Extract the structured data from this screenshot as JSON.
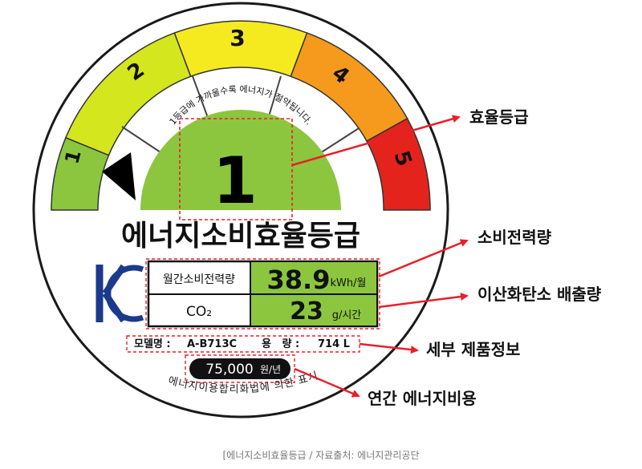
{
  "label": {
    "grades": [
      "1",
      "2",
      "3",
      "4",
      "5"
    ],
    "current_grade": "1",
    "arc_caption": "1등급에 가까울수록 에너지가 절약됩니다.",
    "title": "에너지소비효율등급",
    "kc_mark": "KC",
    "row1_label": "월간소비전력량",
    "row1_value": "38.9",
    "row1_unit": "kWh/월",
    "row2_label": "CO₂",
    "row2_value": "23",
    "row2_unit": "g/시간",
    "model_label": "모델명 :",
    "model_value": "A-B713C",
    "capacity_label": "용   량 :",
    "capacity_value": "714 L",
    "annual_cost": "75,000",
    "annual_cost_unit": "원/년",
    "legal_text": "에너지이용합리화법에 의한 표시"
  },
  "callouts": {
    "grade": "효율등급",
    "power": "소비전력량",
    "co2": "이산화탄소 배출량",
    "details": "세부 제품정보",
    "annual": "연간 에너지비용"
  },
  "caption": "[에너지소비효율등급 / 자료출처: 에너지관리공단",
  "colors": {
    "grade1": "#8cc63f",
    "grade2": "#d4e61e",
    "grade3": "#f5ea20",
    "grade4": "#f59a1c",
    "grade5": "#e4231c",
    "callout": "#e8202a"
  }
}
